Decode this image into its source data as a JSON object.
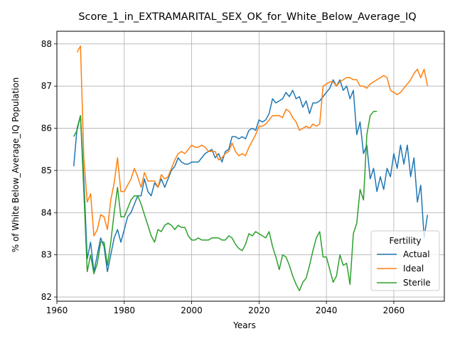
{
  "chart_data": {
    "type": "line",
    "title": "Score_1_in_EXTRAMARITAL_SEX_OK_for_White_Below_Average_IQ",
    "xlabel": "Years",
    "ylabel": "% of White Below_Average_IQ Population",
    "xlim": [
      1960,
      2075
    ],
    "ylim": [
      81.9,
      88.3
    ],
    "xticks": [
      1960,
      1980,
      2000,
      2020,
      2040,
      2060
    ],
    "yticks": [
      82,
      83,
      84,
      85,
      86,
      87,
      88
    ],
    "grid": true,
    "legend": {
      "title": "Fertility",
      "position": "bottom-right"
    },
    "series": [
      {
        "name": "Actual",
        "color": "#1f77b4",
        "x": [
          1965,
          1966,
          1967,
          1968,
          1969,
          1970,
          1971,
          1972,
          1973,
          1974,
          1975,
          1976,
          1977,
          1978,
          1979,
          1980,
          1981,
          1982,
          1983,
          1984,
          1985,
          1986,
          1987,
          1988,
          1989,
          1990,
          1991,
          1992,
          1993,
          1994,
          1995,
          1996,
          1997,
          1998,
          1999,
          2000,
          2001,
          2002,
          2003,
          2004,
          2005,
          2006,
          2007,
          2008,
          2009,
          2010,
          2011,
          2012,
          2013,
          2014,
          2015,
          2016,
          2017,
          2018,
          2019,
          2020,
          2021,
          2022,
          2023,
          2024,
          2025,
          2026,
          2027,
          2028,
          2029,
          2030,
          2031,
          2032,
          2033,
          2034,
          2035,
          2036,
          2037,
          2038,
          2039,
          2040,
          2041,
          2042,
          2043,
          2044,
          2045,
          2046,
          2047,
          2048,
          2049,
          2050,
          2051,
          2052,
          2053,
          2054,
          2055,
          2056,
          2057,
          2058,
          2059,
          2060,
          2061,
          2062,
          2063,
          2064,
          2065,
          2066,
          2067,
          2068,
          2069,
          2070
        ],
        "y": [
          85.1,
          86.0,
          86.3,
          84.8,
          82.9,
          83.3,
          82.6,
          83.0,
          83.4,
          83.2,
          82.6,
          83.0,
          83.4,
          83.6,
          83.3,
          83.6,
          83.9,
          84.0,
          84.2,
          84.4,
          84.4,
          84.8,
          84.5,
          84.4,
          84.7,
          84.6,
          84.8,
          84.6,
          84.8,
          85.0,
          85.1,
          85.3,
          85.2,
          85.15,
          85.15,
          85.2,
          85.2,
          85.2,
          85.3,
          85.4,
          85.45,
          85.5,
          85.3,
          85.4,
          85.2,
          85.45,
          85.5,
          85.8,
          85.8,
          85.75,
          85.8,
          85.75,
          85.95,
          86.0,
          85.95,
          86.2,
          86.15,
          86.2,
          86.35,
          86.7,
          86.6,
          86.65,
          86.7,
          86.85,
          86.75,
          86.9,
          86.7,
          86.75,
          86.5,
          86.65,
          86.35,
          86.6,
          86.6,
          86.65,
          86.75,
          86.85,
          86.95,
          87.15,
          87.0,
          87.15,
          86.9,
          87.0,
          86.7,
          86.9,
          85.85,
          86.15,
          85.4,
          85.6,
          84.8,
          85.05,
          84.5,
          84.85,
          84.55,
          85.05,
          84.85,
          85.4,
          85.05,
          85.6,
          85.15,
          85.6,
          84.85,
          85.3,
          84.25,
          84.65,
          83.4,
          83.95
        ]
      },
      {
        "name": "Ideal",
        "color": "#ff7f0e",
        "x": [
          1966,
          1967,
          1968,
          1969,
          1970,
          1971,
          1972,
          1973,
          1974,
          1975,
          1976,
          1977,
          1978,
          1979,
          1980,
          1981,
          1982,
          1983,
          1984,
          1985,
          1986,
          1987,
          1988,
          1989,
          1990,
          1991,
          1992,
          1993,
          1994,
          1995,
          1996,
          1997,
          1998,
          1999,
          2000,
          2001,
          2002,
          2003,
          2004,
          2005,
          2006,
          2007,
          2008,
          2009,
          2010,
          2011,
          2012,
          2013,
          2014,
          2015,
          2016,
          2017,
          2018,
          2019,
          2020,
          2021,
          2022,
          2023,
          2024,
          2025,
          2026,
          2027,
          2028,
          2029,
          2030,
          2031,
          2032,
          2033,
          2034,
          2035,
          2036,
          2037,
          2038,
          2039,
          2040,
          2041,
          2042,
          2043,
          2044,
          2045,
          2046,
          2047,
          2048,
          2049,
          2050,
          2051,
          2052,
          2053,
          2054,
          2055,
          2056,
          2057,
          2058,
          2059,
          2060,
          2061,
          2062,
          2063,
          2064,
          2065,
          2066,
          2067,
          2068,
          2069,
          2070
        ],
        "y": [
          87.8,
          87.95,
          85.3,
          84.25,
          84.45,
          83.45,
          83.6,
          83.95,
          83.9,
          83.6,
          84.3,
          84.7,
          85.3,
          84.5,
          84.5,
          84.65,
          84.8,
          85.05,
          84.85,
          84.6,
          84.95,
          84.75,
          84.75,
          84.75,
          84.6,
          84.9,
          84.8,
          84.85,
          85.05,
          85.25,
          85.4,
          85.45,
          85.4,
          85.5,
          85.6,
          85.55,
          85.55,
          85.6,
          85.55,
          85.45,
          85.45,
          85.45,
          85.25,
          85.3,
          85.4,
          85.45,
          85.65,
          85.45,
          85.35,
          85.4,
          85.35,
          85.55,
          85.7,
          85.85,
          86.05,
          86.05,
          86.1,
          86.2,
          86.3,
          86.3,
          86.3,
          86.25,
          86.45,
          86.4,
          86.25,
          86.15,
          85.95,
          86.0,
          86.05,
          86.0,
          86.1,
          86.05,
          86.1,
          87.0,
          87.05,
          87.1,
          87.1,
          87.0,
          87.1,
          87.15,
          87.2,
          87.2,
          87.15,
          87.15,
          87.0,
          87.0,
          86.95,
          87.05,
          87.1,
          87.15,
          87.2,
          87.25,
          87.2,
          86.9,
          86.85,
          86.8,
          86.85,
          86.95,
          87.05,
          87.15,
          87.3,
          87.4,
          87.2,
          87.4,
          87.0
        ]
      },
      {
        "name": "Sterile",
        "color": "#2ca02c",
        "x": [
          1965,
          1966,
          1967,
          1968,
          1969,
          1970,
          1971,
          1972,
          1973,
          1974,
          1975,
          1976,
          1977,
          1978,
          1979,
          1980,
          1981,
          1982,
          1983,
          1984,
          1985,
          1986,
          1987,
          1988,
          1989,
          1990,
          1991,
          1992,
          1993,
          1994,
          1995,
          1996,
          1997,
          1998,
          1999,
          2000,
          2001,
          2002,
          2003,
          2004,
          2005,
          2006,
          2007,
          2008,
          2009,
          2010,
          2011,
          2012,
          2013,
          2014,
          2015,
          2016,
          2017,
          2018,
          2019,
          2020,
          2021,
          2022,
          2023,
          2024,
          2025,
          2026,
          2027,
          2028,
          2029,
          2030,
          2031,
          2032,
          2033,
          2034,
          2035,
          2036,
          2037,
          2038,
          2039,
          2040,
          2041,
          2042,
          2043,
          2044,
          2045,
          2046,
          2047,
          2048,
          2049,
          2050,
          2051,
          2052,
          2053,
          2054,
          2055
        ],
        "y": [
          85.8,
          85.95,
          86.3,
          84.5,
          82.6,
          83.0,
          82.55,
          82.8,
          83.3,
          83.3,
          82.75,
          83.3,
          84.0,
          84.6,
          83.9,
          83.9,
          84.1,
          84.3,
          84.4,
          84.4,
          84.2,
          83.95,
          83.7,
          83.45,
          83.3,
          83.6,
          83.55,
          83.7,
          83.75,
          83.7,
          83.6,
          83.7,
          83.65,
          83.65,
          83.45,
          83.35,
          83.35,
          83.4,
          83.35,
          83.35,
          83.35,
          83.4,
          83.4,
          83.4,
          83.35,
          83.35,
          83.45,
          83.4,
          83.25,
          83.15,
          83.1,
          83.25,
          83.5,
          83.45,
          83.55,
          83.5,
          83.45,
          83.4,
          83.55,
          83.2,
          82.95,
          82.65,
          83.0,
          82.95,
          82.75,
          82.5,
          82.3,
          82.15,
          82.35,
          82.45,
          82.75,
          83.1,
          83.4,
          83.55,
          82.95,
          82.95,
          82.65,
          82.35,
          82.5,
          83.0,
          82.75,
          82.8,
          82.3,
          83.5,
          83.75,
          84.55,
          84.3,
          85.85,
          86.3,
          86.4,
          86.4
        ]
      }
    ]
  }
}
